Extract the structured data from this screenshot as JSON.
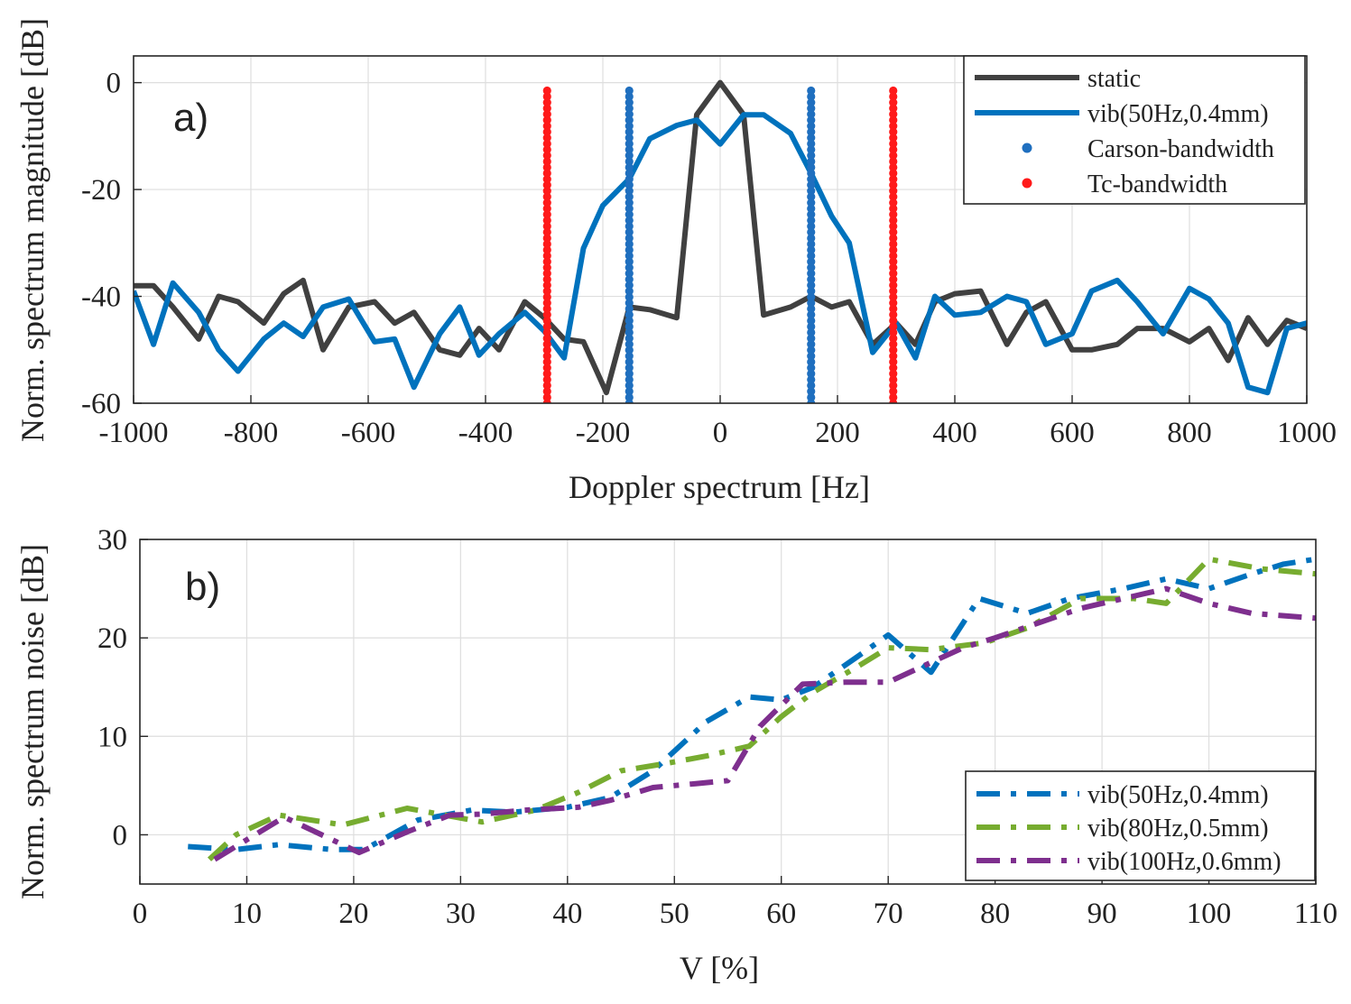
{
  "chart_data": [
    {
      "type": "line",
      "panel_label": "a)",
      "xlabel": "Doppler spectrum [Hz]",
      "ylabel": "Norm. spectrum magnitude [dB]",
      "xlim": [
        -1000,
        1000
      ],
      "ylim": [
        -60,
        5
      ],
      "xticks": [
        -1000,
        -800,
        -600,
        -400,
        -200,
        0,
        200,
        400,
        600,
        800,
        1000
      ],
      "yticks": [
        -60,
        -40,
        -20,
        0
      ],
      "grid": true,
      "legend_position": "top-right",
      "series": [
        {
          "name": "static",
          "style": "solid",
          "color": "#404040",
          "x": [
            -1000,
            -966,
            -933,
            -889,
            -855,
            -822,
            -778,
            -744,
            -711,
            -677,
            -633,
            -589,
            -555,
            -522,
            -478,
            -444,
            -411,
            -377,
            -333,
            -300,
            -266,
            -233,
            -194,
            -155,
            -120,
            -74,
            -40,
            0,
            40,
            74,
            120,
            155,
            190,
            220,
            260,
            300,
            333,
            366,
            400,
            444,
            489,
            522,
            555,
            600,
            633,
            677,
            711,
            755,
            800,
            833,
            866,
            900,
            933,
            966,
            1000
          ],
          "y": [
            -38,
            -38,
            -42,
            -48,
            -40,
            -41,
            -45,
            -39.5,
            -37,
            -50,
            -42,
            -41,
            -45,
            -43,
            -50,
            -51,
            -46,
            -50,
            -41,
            -44,
            -48,
            -48.5,
            -58,
            -42,
            -42.5,
            -44,
            -6,
            0,
            -6,
            -43.5,
            -42,
            -40,
            -42,
            -41,
            -49,
            -45,
            -49,
            -41,
            -39.5,
            -39,
            -49,
            -43,
            -41,
            -50,
            -50,
            -49,
            -46,
            -46,
            -48.5,
            -46,
            -52,
            -44,
            -49,
            -44.5,
            -46
          ]
        },
        {
          "name": "vib(50Hz,0.4mm)",
          "style": "solid",
          "color": "#0072bd",
          "x": [
            -1000,
            -966,
            -933,
            -889,
            -855,
            -822,
            -778,
            -744,
            -711,
            -677,
            -633,
            -589,
            -555,
            -522,
            -478,
            -444,
            -411,
            -377,
            -333,
            -300,
            -266,
            -233,
            -200,
            -155,
            -120,
            -74,
            -40,
            0,
            40,
            74,
            120,
            155,
            190,
            220,
            260,
            300,
            333,
            366,
            400,
            444,
            489,
            522,
            555,
            600,
            633,
            677,
            711,
            755,
            800,
            833,
            866,
            900,
            933,
            966,
            1000
          ],
          "y": [
            -39,
            -49,
            -37.5,
            -43,
            -50,
            -54,
            -48,
            -45,
            -47.5,
            -42,
            -40.5,
            -48.5,
            -48,
            -57,
            -47,
            -42,
            -51,
            -47,
            -43,
            -46.5,
            -51.5,
            -31,
            -23,
            -18,
            -10.5,
            -8,
            -7,
            -11.5,
            -6,
            -6,
            -9.5,
            -17,
            -25,
            -30,
            -50.5,
            -45,
            -51.5,
            -40,
            -43.5,
            -43,
            -40,
            -41,
            -49,
            -47,
            -39,
            -37,
            -41,
            -47,
            -38.5,
            -40.5,
            -45,
            -57,
            -58,
            -46,
            -45
          ]
        },
        {
          "name": "Carson-bandwidth",
          "style": "dotted",
          "color": "#1f6fbf",
          "x": [
            -155,
            155
          ],
          "y": [
            -60,
            -1.5
          ]
        },
        {
          "name": "Tc-bandwidth",
          "style": "dotted",
          "color": "#ff1a1a",
          "x": [
            -295,
            295
          ],
          "y": [
            -60,
            -1.5
          ]
        }
      ]
    },
    {
      "type": "line",
      "panel_label": "b)",
      "xlabel": "V  [%]",
      "ylabel": "Norm. spectrum noise [dB]",
      "xlim": [
        0,
        110
      ],
      "ylim": [
        -5,
        30
      ],
      "xticks": [
        0,
        10,
        20,
        30,
        40,
        50,
        60,
        70,
        80,
        90,
        100,
        110
      ],
      "yticks": [
        0,
        10,
        20,
        30
      ],
      "grid": true,
      "legend_position": "bottom-right",
      "series": [
        {
          "name": "vib(50Hz,0.4mm)",
          "style": "dashdot",
          "color": "#0072bd",
          "x": [
            4.5,
            9,
            13,
            18,
            21,
            26,
            31,
            35,
            40,
            44,
            48,
            53,
            57,
            60,
            63,
            67,
            70,
            74,
            78.5,
            83,
            87,
            92,
            96,
            100,
            104,
            107,
            110
          ],
          "y": [
            -1.2,
            -1.5,
            -1,
            -1.5,
            -1.5,
            1.5,
            2.5,
            2.3,
            2.8,
            3.8,
            6.5,
            11.5,
            14,
            13.7,
            15,
            18,
            20.3,
            16.5,
            24,
            22.5,
            24,
            25,
            26,
            25,
            26.5,
            27.5,
            28
          ]
        },
        {
          "name": "vib(80Hz,0.5mm)",
          "style": "dashdot",
          "color": "#77ac30",
          "x": [
            6.5,
            9,
            13,
            19,
            25,
            32,
            37,
            41,
            45,
            49,
            53,
            57,
            60,
            63,
            67,
            70,
            74,
            79,
            83,
            88,
            93,
            96,
            100,
            105,
            110
          ],
          "y": [
            -2.5,
            0,
            2,
            1,
            2.7,
            1.3,
            2.5,
            4.3,
            6.5,
            7.2,
            8,
            9,
            12,
            14.5,
            17,
            19,
            18.8,
            19.5,
            21,
            24,
            24,
            23.5,
            28,
            27,
            26.5
          ]
        },
        {
          "name": "vib(100Hz,0.6mm)",
          "style": "dashdot",
          "color": "#7e2f8e",
          "x": [
            7,
            10,
            13.5,
            17,
            20.5,
            25,
            29,
            32,
            36,
            41,
            44,
            48,
            52,
            55,
            58,
            62,
            66,
            70,
            73,
            77,
            80,
            84,
            88,
            92,
            96,
            100,
            104,
            110
          ],
          "y": [
            -2.5,
            -0.5,
            1.8,
            0,
            -1.8,
            0.3,
            2,
            2.1,
            2.5,
            2.8,
            3.5,
            4.8,
            5.2,
            5.5,
            11,
            15.3,
            15.5,
            15.5,
            17,
            19,
            20,
            21.5,
            23,
            24,
            25,
            23.5,
            22.5,
            22
          ]
        }
      ]
    }
  ]
}
